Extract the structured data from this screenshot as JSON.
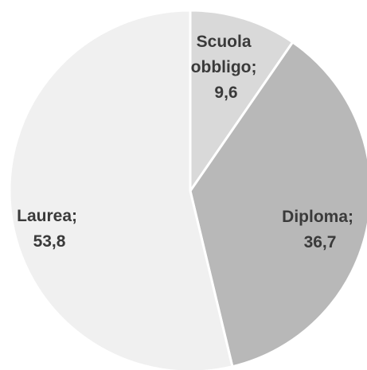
{
  "chart_data": {
    "type": "pie",
    "title": "",
    "legend": "none",
    "slices": [
      {
        "category": "Scuola obbligo",
        "value": 9.6,
        "label_lines": [
          "Scuola",
          "obbligo;",
          "9,6"
        ],
        "color": "#d9d9d9"
      },
      {
        "category": "Diploma",
        "value": 36.7,
        "label_lines": [
          "Diploma;",
          "36,7"
        ],
        "color": "#b8b8b8"
      },
      {
        "category": "Laurea",
        "value": 53.8,
        "label_lines": [
          "Laurea;",
          "53,8"
        ],
        "color": "#f0f0f0"
      }
    ]
  }
}
